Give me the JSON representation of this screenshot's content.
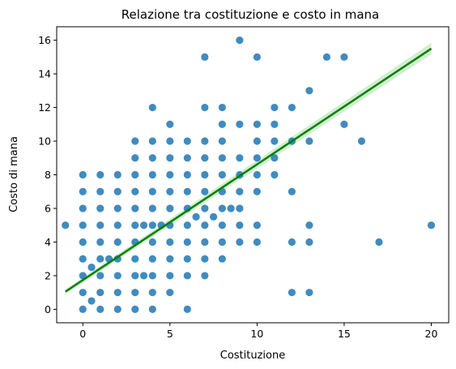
{
  "chart_data": {
    "type": "scatter",
    "title": "Relazione tra costituzione e costo in mana",
    "xlabel": "Costituzione",
    "ylabel": "Costo di mana",
    "xlim": [
      -1.5,
      21.0
    ],
    "ylim": [
      -0.8,
      16.8
    ],
    "xticks": [
      "0",
      "5",
      "10",
      "15",
      "20"
    ],
    "yticks": [
      "0",
      "2",
      "4",
      "6",
      "8",
      "10",
      "12",
      "14",
      "16"
    ],
    "grid": false,
    "point_color": "#1f77b4",
    "regression": {
      "color": "#008000",
      "band_color": "#a6dba0",
      "x_start": -1,
      "y_start": 1.05,
      "x_end": 20,
      "y_end": 15.5
    },
    "points": [
      [
        -1,
        5
      ],
      [
        0.5,
        0.5
      ],
      [
        0.5,
        2.5
      ],
      [
        1.5,
        3
      ],
      [
        3.5,
        5
      ],
      [
        3.5,
        2
      ],
      [
        4.5,
        5
      ],
      [
        6.5,
        5.5
      ],
      [
        7.5,
        5.5
      ],
      [
        8.5,
        6
      ],
      [
        0,
        0
      ],
      [
        0,
        1
      ],
      [
        0,
        2
      ],
      [
        0,
        3
      ],
      [
        0,
        4
      ],
      [
        0,
        5
      ],
      [
        0,
        6
      ],
      [
        0,
        7
      ],
      [
        0,
        8
      ],
      [
        1,
        0
      ],
      [
        1,
        1
      ],
      [
        1,
        2
      ],
      [
        1,
        3
      ],
      [
        1,
        4
      ],
      [
        1,
        5
      ],
      [
        1,
        6
      ],
      [
        1,
        7
      ],
      [
        1,
        8
      ],
      [
        2,
        0
      ],
      [
        2,
        1
      ],
      [
        2,
        2
      ],
      [
        2,
        3
      ],
      [
        2,
        4
      ],
      [
        2,
        5
      ],
      [
        2,
        6
      ],
      [
        2,
        7
      ],
      [
        2,
        8
      ],
      [
        3,
        0
      ],
      [
        3,
        1
      ],
      [
        3,
        2
      ],
      [
        3,
        3
      ],
      [
        3,
        4
      ],
      [
        3,
        5
      ],
      [
        3,
        6
      ],
      [
        3,
        7
      ],
      [
        3,
        8
      ],
      [
        3,
        9
      ],
      [
        3,
        10
      ],
      [
        4,
        0
      ],
      [
        4,
        1
      ],
      [
        4,
        2
      ],
      [
        4,
        3
      ],
      [
        4,
        4
      ],
      [
        4,
        5
      ],
      [
        4,
        6
      ],
      [
        4,
        7
      ],
      [
        4,
        8
      ],
      [
        4,
        9
      ],
      [
        4,
        10
      ],
      [
        4,
        12
      ],
      [
        5,
        1
      ],
      [
        5,
        2
      ],
      [
        5,
        3
      ],
      [
        5,
        4
      ],
      [
        5,
        5
      ],
      [
        5,
        6
      ],
      [
        5,
        7
      ],
      [
        5,
        8
      ],
      [
        5,
        9
      ],
      [
        5,
        10
      ],
      [
        5,
        11
      ],
      [
        6,
        0
      ],
      [
        6,
        2
      ],
      [
        6,
        3
      ],
      [
        6,
        4
      ],
      [
        6,
        5
      ],
      [
        6,
        6
      ],
      [
        6,
        7
      ],
      [
        6,
        8
      ],
      [
        6,
        9
      ],
      [
        6,
        10
      ],
      [
        7,
        2
      ],
      [
        7,
        3
      ],
      [
        7,
        4
      ],
      [
        7,
        5
      ],
      [
        7,
        6
      ],
      [
        7,
        7
      ],
      [
        7,
        8
      ],
      [
        7,
        9
      ],
      [
        7,
        10
      ],
      [
        7,
        12
      ],
      [
        7,
        15
      ],
      [
        8,
        3
      ],
      [
        8,
        4
      ],
      [
        8,
        5
      ],
      [
        8,
        6
      ],
      [
        8,
        7
      ],
      [
        8,
        8
      ],
      [
        8,
        9
      ],
      [
        8,
        10
      ],
      [
        8,
        11
      ],
      [
        8,
        12
      ],
      [
        9,
        4
      ],
      [
        9,
        5
      ],
      [
        9,
        6
      ],
      [
        9,
        7
      ],
      [
        9,
        8
      ],
      [
        9,
        9
      ],
      [
        9,
        11
      ],
      [
        9,
        16
      ],
      [
        10,
        4
      ],
      [
        10,
        5
      ],
      [
        10,
        7
      ],
      [
        10,
        8
      ],
      [
        10,
        9
      ],
      [
        10,
        10
      ],
      [
        10,
        11
      ],
      [
        10,
        15
      ],
      [
        11,
        8
      ],
      [
        11,
        9
      ],
      [
        11,
        10
      ],
      [
        11,
        11
      ],
      [
        11,
        12
      ],
      [
        12,
        1
      ],
      [
        12,
        4
      ],
      [
        12,
        7
      ],
      [
        12,
        10
      ],
      [
        12,
        12
      ],
      [
        13,
        1
      ],
      [
        13,
        4
      ],
      [
        13,
        5
      ],
      [
        13,
        10
      ],
      [
        13,
        13
      ],
      [
        14,
        15
      ],
      [
        15,
        11
      ],
      [
        15,
        15
      ],
      [
        16,
        10
      ],
      [
        17,
        4
      ],
      [
        20,
        5
      ]
    ]
  }
}
